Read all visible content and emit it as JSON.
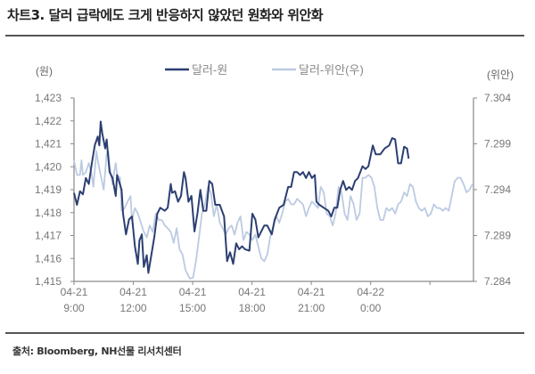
{
  "title": "차트3. 달러 급락에도 크게 반응하지 않았던 원화와 위안화",
  "source": "출처: Bloomberg, NH선물 리서치센터",
  "chart_data": {
    "type": "line",
    "title": "차트3. 달러 급락에도 크게 반응하지 않았던 원화와 위안화",
    "xlabel": "",
    "x_unit": "hours since 04-21 9:00",
    "xlim": [
      0,
      20.2
    ],
    "x_ticks": [
      0,
      3,
      6,
      9,
      12,
      15,
      18
    ],
    "x_tick_labels": [
      [
        "04-21",
        "9:00"
      ],
      [
        "04-21",
        "12:00"
      ],
      [
        "04-21",
        "15:00"
      ],
      [
        "04-21",
        "18:00"
      ],
      [
        "04-21",
        "21:00"
      ],
      [
        "04-22",
        "0:00"
      ],
      [
        "",
        ""
      ]
    ],
    "ylabel_left": "(원)",
    "ylabel_right": "(위안)",
    "ylim_left": [
      1415,
      1423
    ],
    "ylim_right": [
      7.284,
      7.304
    ],
    "y_ticks_left": [
      "1,423",
      "1,422",
      "1,421",
      "1,420",
      "1,419",
      "1,418",
      "1,417",
      "1,416",
      "1,415"
    ],
    "y_ticks_right": [
      "7.304",
      "7.299",
      "7.294",
      "7.289",
      "7.284"
    ],
    "legend_placement": "top-center",
    "grid": false,
    "colors": {
      "usdkrw": "#2c3f72",
      "usdcny": "#bccae2",
      "axis": "#8a8a8a"
    },
    "series": [
      {
        "name": "달러-원",
        "axis": "left",
        "points": [
          [
            0.0,
            1418.86
          ],
          [
            0.15,
            1418.34
          ],
          [
            0.3,
            1418.93
          ],
          [
            0.45,
            1418.8
          ],
          [
            0.6,
            1419.51
          ],
          [
            0.75,
            1419.25
          ],
          [
            0.9,
            1420.15
          ],
          [
            1.05,
            1420.93
          ],
          [
            1.2,
            1421.32
          ],
          [
            1.28,
            1420.93
          ],
          [
            1.35,
            1421.97
          ],
          [
            1.43,
            1421.45
          ],
          [
            1.58,
            1420.8
          ],
          [
            1.65,
            1421.19
          ],
          [
            1.73,
            1420.41
          ],
          [
            1.8,
            1419.77
          ],
          [
            1.95,
            1419.51
          ],
          [
            2.11,
            1418.73
          ],
          [
            2.18,
            1419.64
          ],
          [
            2.41,
            1418.99
          ],
          [
            2.48,
            1417.95
          ],
          [
            2.63,
            1417.05
          ],
          [
            2.78,
            1417.7
          ],
          [
            2.93,
            1417.83
          ],
          [
            3.08,
            1416.53
          ],
          [
            3.23,
            1415.76
          ],
          [
            3.31,
            1416.79
          ],
          [
            3.43,
            1417.05
          ],
          [
            3.53,
            1415.63
          ],
          [
            3.68,
            1416.14
          ],
          [
            3.76,
            1415.37
          ],
          [
            3.91,
            1416.14
          ],
          [
            4.06,
            1416.92
          ],
          [
            4.21,
            1417.95
          ],
          [
            4.36,
            1418.21
          ],
          [
            4.59,
            1418.08
          ],
          [
            4.74,
            1418.21
          ],
          [
            4.89,
            1419.25
          ],
          [
            4.96,
            1418.86
          ],
          [
            5.11,
            1418.93
          ],
          [
            5.26,
            1418.47
          ],
          [
            5.41,
            1418.73
          ],
          [
            5.56,
            1419.77
          ],
          [
            5.64,
            1419.51
          ],
          [
            5.79,
            1418.47
          ],
          [
            5.94,
            1418.73
          ],
          [
            6.09,
            1417.18
          ],
          [
            6.24,
            1417.95
          ],
          [
            6.39,
            1418.99
          ],
          [
            6.54,
            1418.08
          ],
          [
            6.69,
            1418.08
          ],
          [
            6.84,
            1419.38
          ],
          [
            6.99,
            1419.25
          ],
          [
            7.14,
            1418.34
          ],
          [
            7.37,
            1418.34
          ],
          [
            7.59,
            1417.83
          ],
          [
            7.74,
            1415.88
          ],
          [
            7.89,
            1416.27
          ],
          [
            8.05,
            1415.76
          ],
          [
            8.2,
            1416.66
          ],
          [
            8.35,
            1416.4
          ],
          [
            8.5,
            1416.53
          ],
          [
            8.65,
            1416.4
          ],
          [
            8.87,
            1416.34
          ],
          [
            9.02,
            1417.95
          ],
          [
            9.17,
            1417.7
          ],
          [
            9.32,
            1416.92
          ],
          [
            9.47,
            1417.18
          ],
          [
            9.62,
            1417.44
          ],
          [
            9.77,
            1417.44
          ],
          [
            10.0,
            1417.05
          ],
          [
            10.15,
            1417.7
          ],
          [
            10.38,
            1418.21
          ],
          [
            10.6,
            1418.34
          ],
          [
            10.83,
            1419.12
          ],
          [
            10.98,
            1419.12
          ],
          [
            11.13,
            1419.77
          ],
          [
            11.28,
            1419.77
          ],
          [
            11.43,
            1419.64
          ],
          [
            11.58,
            1419.77
          ],
          [
            11.73,
            1419.51
          ],
          [
            11.88,
            1419.77
          ],
          [
            12.03,
            1419.51
          ],
          [
            12.18,
            1419.64
          ],
          [
            12.26,
            1418.47
          ],
          [
            12.41,
            1418.34
          ],
          [
            12.63,
            1418.21
          ],
          [
            12.86,
            1418.08
          ],
          [
            13.01,
            1417.83
          ],
          [
            13.16,
            1418.21
          ],
          [
            13.31,
            1418.21
          ],
          [
            13.46,
            1418.99
          ],
          [
            13.61,
            1419.38
          ],
          [
            13.76,
            1418.99
          ],
          [
            13.91,
            1419.12
          ],
          [
            14.06,
            1418.99
          ],
          [
            14.21,
            1419.38
          ],
          [
            14.36,
            1419.51
          ],
          [
            14.59,
            1420.02
          ],
          [
            14.74,
            1419.9
          ],
          [
            14.89,
            1420.02
          ],
          [
            15.11,
            1420.93
          ],
          [
            15.26,
            1420.54
          ],
          [
            15.49,
            1420.54
          ],
          [
            15.71,
            1420.8
          ],
          [
            15.94,
            1420.93
          ],
          [
            16.09,
            1421.25
          ],
          [
            16.24,
            1421.19
          ],
          [
            16.39,
            1420.15
          ],
          [
            16.54,
            1420.15
          ],
          [
            16.69,
            1420.87
          ],
          [
            16.84,
            1420.8
          ],
          [
            16.92,
            1420.35
          ]
        ]
      },
      {
        "name": "달러-위안(우)",
        "axis": "right",
        "points": [
          [
            0.0,
            7.2972
          ],
          [
            0.15,
            7.2956
          ],
          [
            0.3,
            7.2956
          ],
          [
            0.38,
            7.2972
          ],
          [
            0.45,
            7.2956
          ],
          [
            0.6,
            7.2959
          ],
          [
            0.75,
            7.2969
          ],
          [
            0.9,
            7.2956
          ],
          [
            0.98,
            7.2943
          ],
          [
            1.13,
            7.2982
          ],
          [
            1.2,
            7.2972
          ],
          [
            1.35,
            7.2956
          ],
          [
            1.5,
            7.294
          ],
          [
            1.65,
            7.2979
          ],
          [
            1.73,
            7.2982
          ],
          [
            1.8,
            7.2966
          ],
          [
            1.95,
            7.2946
          ],
          [
            2.03,
            7.2959
          ],
          [
            2.11,
            7.2969
          ],
          [
            2.18,
            7.2956
          ],
          [
            2.33,
            7.2953
          ],
          [
            2.41,
            7.2917
          ],
          [
            2.56,
            7.292
          ],
          [
            2.71,
            7.2927
          ],
          [
            2.86,
            7.2933
          ],
          [
            2.93,
            7.2907
          ],
          [
            3.08,
            7.292
          ],
          [
            3.23,
            7.2914
          ],
          [
            3.38,
            7.2904
          ],
          [
            3.53,
            7.2894
          ],
          [
            3.68,
            7.2888
          ],
          [
            3.83,
            7.2901
          ],
          [
            3.98,
            7.2894
          ],
          [
            4.14,
            7.2914
          ],
          [
            4.29,
            7.2907
          ],
          [
            4.44,
            7.2907
          ],
          [
            4.59,
            7.2901
          ],
          [
            4.74,
            7.2898
          ],
          [
            4.89,
            7.2894
          ],
          [
            5.04,
            7.2882
          ],
          [
            5.19,
            7.2898
          ],
          [
            5.34,
            7.2875
          ],
          [
            5.49,
            7.2869
          ],
          [
            5.64,
            7.2852
          ],
          [
            5.86,
            7.2843
          ],
          [
            6.02,
            7.2844
          ],
          [
            6.17,
            7.2862
          ],
          [
            6.32,
            7.2888
          ],
          [
            6.47,
            7.2914
          ],
          [
            6.62,
            7.2924
          ],
          [
            6.77,
            7.2943
          ],
          [
            6.92,
            7.2937
          ],
          [
            7.07,
            7.2911
          ],
          [
            7.22,
            7.2924
          ],
          [
            7.37,
            7.2904
          ],
          [
            7.52,
            7.2898
          ],
          [
            7.67,
            7.2891
          ],
          [
            7.82,
            7.2898
          ],
          [
            7.97,
            7.2901
          ],
          [
            8.12,
            7.2891
          ],
          [
            8.27,
            7.2904
          ],
          [
            8.42,
            7.2911
          ],
          [
            8.57,
            7.2885
          ],
          [
            8.72,
            7.2894
          ],
          [
            8.87,
            7.2891
          ],
          [
            9.02,
            7.2885
          ],
          [
            9.17,
            7.2891
          ],
          [
            9.32,
            7.2878
          ],
          [
            9.47,
            7.2865
          ],
          [
            9.62,
            7.2862
          ],
          [
            9.77,
            7.2869
          ],
          [
            9.92,
            7.2888
          ],
          [
            10.08,
            7.2901
          ],
          [
            10.23,
            7.2911
          ],
          [
            10.38,
            7.2904
          ],
          [
            10.53,
            7.2914
          ],
          [
            10.68,
            7.2927
          ],
          [
            10.83,
            7.293
          ],
          [
            10.98,
            7.2924
          ],
          [
            11.13,
            7.2924
          ],
          [
            11.28,
            7.293
          ],
          [
            11.43,
            7.2927
          ],
          [
            11.58,
            7.2924
          ],
          [
            11.73,
            7.2911
          ],
          [
            11.88,
            7.292
          ],
          [
            12.03,
            7.2927
          ],
          [
            12.18,
            7.2924
          ],
          [
            12.33,
            7.292
          ],
          [
            12.48,
            7.2943
          ],
          [
            12.63,
            7.2937
          ],
          [
            12.78,
            7.2914
          ],
          [
            12.93,
            7.2911
          ],
          [
            13.08,
            7.2901
          ],
          [
            13.23,
            7.2914
          ],
          [
            13.38,
            7.2943
          ],
          [
            13.53,
            7.2937
          ],
          [
            13.68,
            7.2914
          ],
          [
            13.83,
            7.2907
          ],
          [
            13.98,
            7.2933
          ],
          [
            14.14,
            7.2924
          ],
          [
            14.29,
            7.2907
          ],
          [
            14.44,
            7.2914
          ],
          [
            14.59,
            7.2953
          ],
          [
            14.74,
            7.2953
          ],
          [
            14.89,
            7.2956
          ],
          [
            15.04,
            7.2953
          ],
          [
            15.19,
            7.2943
          ],
          [
            15.34,
            7.292
          ],
          [
            15.49,
            7.2907
          ],
          [
            15.64,
            7.2907
          ],
          [
            15.79,
            7.292
          ],
          [
            15.94,
            7.2917
          ],
          [
            16.09,
            7.292
          ],
          [
            16.24,
            7.2914
          ],
          [
            16.39,
            7.2924
          ],
          [
            16.54,
            7.2927
          ],
          [
            16.69,
            7.2937
          ],
          [
            16.84,
            7.2933
          ],
          [
            16.99,
            7.2946
          ],
          [
            17.14,
            7.2943
          ],
          [
            17.29,
            7.2927
          ],
          [
            17.44,
            7.292
          ],
          [
            17.59,
            7.2917
          ],
          [
            17.74,
            7.292
          ],
          [
            17.89,
            7.2911
          ],
          [
            18.05,
            7.2914
          ],
          [
            18.2,
            7.2924
          ],
          [
            18.35,
            7.292
          ],
          [
            18.5,
            7.292
          ],
          [
            18.65,
            7.2917
          ],
          [
            18.8,
            7.292
          ],
          [
            18.95,
            7.2917
          ],
          [
            19.1,
            7.2933
          ],
          [
            19.25,
            7.2949
          ],
          [
            19.4,
            7.2953
          ],
          [
            19.55,
            7.2953
          ],
          [
            19.7,
            7.2946
          ],
          [
            19.85,
            7.2937
          ],
          [
            20.0,
            7.294
          ],
          [
            20.15,
            7.2946
          ]
        ]
      }
    ]
  }
}
